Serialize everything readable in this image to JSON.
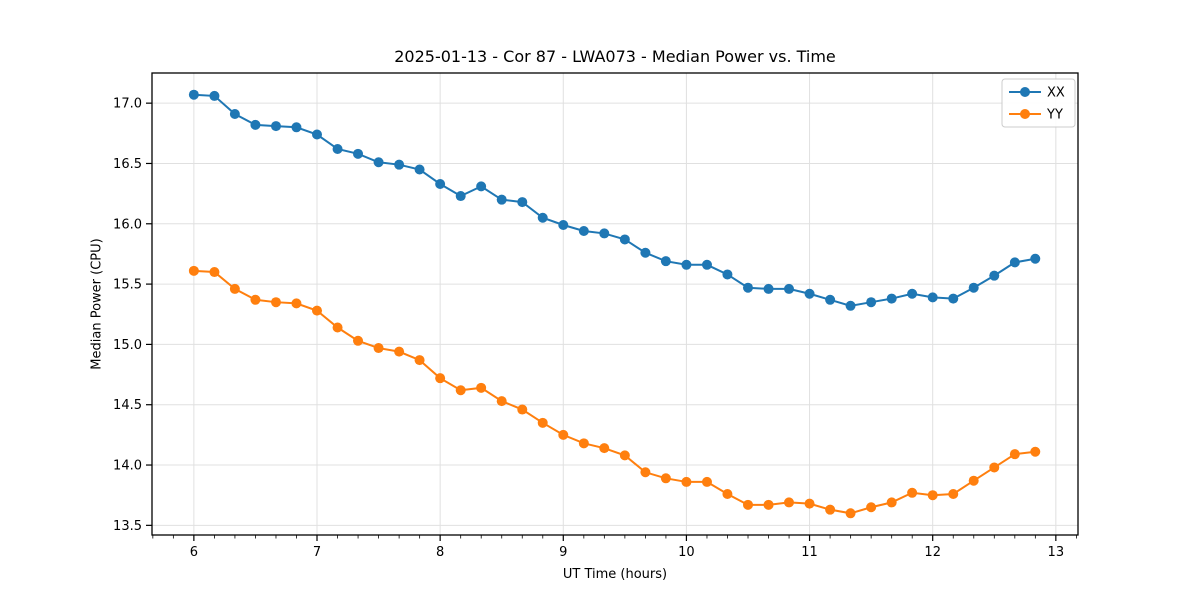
{
  "chart_data": {
    "type": "line",
    "title": "2025-01-13 - Cor 87 - LWA073 - Median Power vs. Time",
    "xlabel": "UT Time (hours)",
    "ylabel": "Median Power (CPU)",
    "x": [
      6.0,
      6.167,
      6.333,
      6.5,
      6.667,
      6.833,
      7.0,
      7.167,
      7.333,
      7.5,
      7.667,
      7.833,
      8.0,
      8.167,
      8.333,
      8.5,
      8.667,
      8.833,
      9.0,
      9.167,
      9.333,
      9.5,
      9.667,
      9.833,
      10.0,
      10.167,
      10.333,
      10.5,
      10.667,
      10.833,
      11.0,
      11.167,
      11.333,
      11.5,
      11.667,
      11.833,
      12.0,
      12.167,
      12.333,
      12.5,
      12.667,
      12.833
    ],
    "series": [
      {
        "name": "XX",
        "color": "#1f77b4",
        "values": [
          17.07,
          17.06,
          16.91,
          16.82,
          16.81,
          16.8,
          16.74,
          16.62,
          16.58,
          16.51,
          16.49,
          16.45,
          16.33,
          16.23,
          16.31,
          16.2,
          16.18,
          16.05,
          15.99,
          15.94,
          15.92,
          15.87,
          15.76,
          15.69,
          15.66,
          15.66,
          15.58,
          15.47,
          15.46,
          15.46,
          15.42,
          15.37,
          15.32,
          15.35,
          15.38,
          15.42,
          15.39,
          15.38,
          15.47,
          15.57,
          15.68,
          15.71
        ]
      },
      {
        "name": "YY",
        "color": "#ff7f0e",
        "values": [
          15.61,
          15.6,
          15.46,
          15.37,
          15.35,
          15.34,
          15.28,
          15.14,
          15.03,
          14.97,
          14.94,
          14.87,
          14.72,
          14.62,
          14.64,
          14.53,
          14.46,
          14.35,
          14.25,
          14.18,
          14.14,
          14.08,
          13.94,
          13.89,
          13.86,
          13.86,
          13.76,
          13.67,
          13.67,
          13.69,
          13.68,
          13.63,
          13.6,
          13.65,
          13.69,
          13.77,
          13.75,
          13.76,
          13.87,
          13.98,
          14.09,
          14.11
        ]
      }
    ],
    "xlim": [
      5.66,
      13.18
    ],
    "ylim": [
      13.42,
      17.25
    ],
    "xticks": [
      6,
      7,
      8,
      9,
      10,
      11,
      12,
      13
    ],
    "yticks": [
      13.5,
      14.0,
      14.5,
      15.0,
      15.5,
      16.0,
      16.5,
      17.0
    ],
    "x_minor_step": 0.16667,
    "grid": true,
    "grid_color": "#e0e0e0",
    "legend_position": "upper right"
  }
}
